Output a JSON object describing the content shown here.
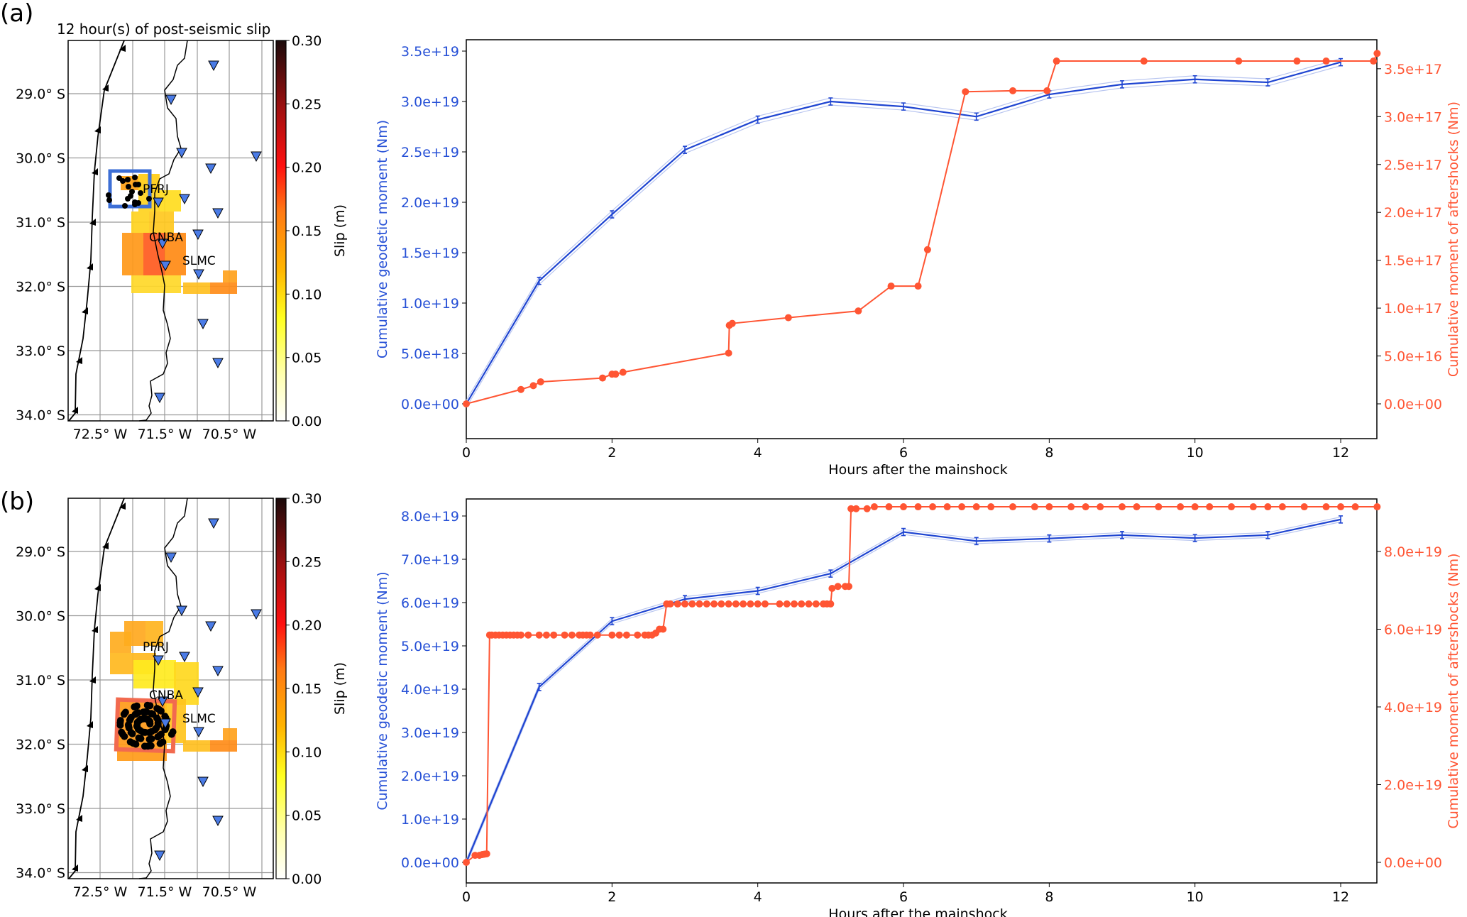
{
  "figure": {
    "panels": [
      {
        "label": "(a)",
        "map": {
          "title": "12 hour(s) of post-seismic slip",
          "lat_ticks": [
            "29.0° S",
            "30.0° S",
            "31.0° S",
            "32.0° S",
            "33.0° S",
            "34.0° S"
          ],
          "lon_ticks": [
            "72.5° W",
            "71.5° W",
            "70.5° W"
          ],
          "station_labels": [
            "PFRJ",
            "CNBA",
            "SLMC"
          ],
          "highlight_box_color": "#3d6fd6",
          "colorbar": {
            "label": "Slip  (m)",
            "ticks": [
              "0.00",
              "0.05",
              "0.10",
              "0.15",
              "0.20",
              "0.25",
              "0.30"
            ]
          }
        }
      },
      {
        "label": "(b)",
        "map": {
          "title": "",
          "lat_ticks": [
            "29.0° S",
            "30.0° S",
            "31.0° S",
            "32.0° S",
            "33.0° S",
            "34.0° S"
          ],
          "lon_ticks": [
            "72.5° W",
            "71.5° W",
            "70.5° W"
          ],
          "station_labels": [
            "PFRJ",
            "CNBA",
            "SLMC"
          ],
          "highlight_box_color": "#f26a4f",
          "colorbar": {
            "label": "Slip  (m)",
            "ticks": [
              "0.00",
              "0.05",
              "0.10",
              "0.15",
              "0.20",
              "0.25",
              "0.30"
            ]
          }
        }
      }
    ],
    "colors": {
      "geodetic": "#1f45d1",
      "geodetic_band": "#b9c6f0",
      "aftershock": "#ff5533"
    }
  },
  "chart_data": [
    {
      "type": "line",
      "panel": "(a)",
      "xlabel": "Hours after the mainshock",
      "xlim": [
        0,
        12.5
      ],
      "x_ticks": [
        "0",
        "2",
        "4",
        "6",
        "8",
        "10",
        "12"
      ],
      "ylabel_left": "Cumulative geodetic moment (Nm)",
      "ylim_left": [
        -1.6e+18,
        3.6e+19
      ],
      "y_ticks_left": [
        "0.0e+00",
        "5.0e+18",
        "1.0e+19",
        "1.5e+19",
        "2.0e+19",
        "2.5e+19",
        "3.0e+19",
        "3.5e+19"
      ],
      "ylabel_right": "Cumulative moment of aftershocks (Nm)",
      "ylim_right": [
        -1.6e+16,
        3.8e+17
      ],
      "y_ticks_right": [
        "0.0e+00",
        "5.0e+16",
        "1.0e+17",
        "1.5e+17",
        "2.0e+17",
        "2.5e+17",
        "3.0e+17",
        "3.5e+17"
      ],
      "series": [
        {
          "name": "Cumulative geodetic moment",
          "axis": "left",
          "x": [
            0,
            1,
            2,
            3,
            4,
            5,
            6,
            7,
            8,
            9,
            10,
            11,
            12
          ],
          "y": [
            0,
            1.22e+19,
            1.88e+19,
            2.52e+19,
            2.82e+19,
            3e+19,
            2.95e+19,
            2.85e+19,
            3.07e+19,
            3.17e+19,
            3.22e+19,
            3.19e+19,
            3.39e+19
          ],
          "error": 3e+17
        },
        {
          "name": "Cumulative moment of aftershocks",
          "axis": "right",
          "x": [
            0,
            0.75,
            0.92,
            1.02,
            1.87,
            2.0,
            2.05,
            2.15,
            3.6,
            3.61,
            3.65,
            4.42,
            5.38,
            5.83,
            6.2,
            6.33,
            6.85,
            7.5,
            7.97,
            8.1,
            9.3,
            10.6,
            11.4,
            11.8,
            12.45,
            12.5
          ],
          "y": [
            0,
            1.5e+16,
            1.9e+16,
            2.3e+16,
            2.7e+16,
            3.1e+16,
            3.1e+16,
            3.3e+16,
            5.3e+16,
            8.2e+16,
            8.4e+16,
            9e+16,
            9.7e+16,
            1.23e+17,
            1.23e+17,
            1.61e+17,
            3.26e+17,
            3.27e+17,
            3.27e+17,
            3.58e+17,
            3.58e+17,
            3.58e+17,
            3.58e+17,
            3.58e+17,
            3.58e+17,
            3.66e+17
          ]
        }
      ]
    },
    {
      "type": "line",
      "panel": "(b)",
      "xlabel": "Hours after the mainshock",
      "xlim": [
        0,
        12.5
      ],
      "x_ticks": [
        "0",
        "2",
        "4",
        "6",
        "8",
        "10",
        "12"
      ],
      "ylabel_left": "Cumulative geodetic moment (Nm)",
      "ylim_left": [
        -4.7e+18,
        8.4e+19
      ],
      "y_ticks_left": [
        "0.0e+00",
        "1.0e+19",
        "2.0e+19",
        "3.0e+19",
        "4.0e+19",
        "5.0e+19",
        "6.0e+19",
        "7.0e+19",
        "8.0e+19"
      ],
      "ylabel_right": "Cumulative moment of aftershocks (Nm)",
      "ylim_right": [
        -5.3e+18,
        9.35e+19
      ],
      "y_ticks_right": [
        "0.0e+00",
        "2.0e+19",
        "4.0e+19",
        "6.0e+19",
        "8.0e+19"
      ],
      "series": [
        {
          "name": "Cumulative geodetic moment",
          "axis": "left",
          "x": [
            0,
            1,
            2,
            3,
            4,
            5,
            6,
            7,
            8,
            9,
            10,
            11,
            12
          ],
          "y": [
            0,
            4.05e+19,
            5.57e+19,
            6.08e+19,
            6.27e+19,
            6.67e+19,
            7.63e+19,
            7.42e+19,
            7.48e+19,
            7.56e+19,
            7.49e+19,
            7.56e+19,
            7.92e+19
          ],
          "error": 8e+17
        },
        {
          "name": "Cumulative moment of aftershocks",
          "axis": "right",
          "x": [
            0,
            0.12,
            0.18,
            0.22,
            0.25,
            0.28,
            0.32,
            0.35,
            0.4,
            0.45,
            0.5,
            0.55,
            0.6,
            0.65,
            0.7,
            0.75,
            0.85,
            1.0,
            1.1,
            1.2,
            1.35,
            1.45,
            1.55,
            1.6,
            1.65,
            1.7,
            1.8,
            2.0,
            2.1,
            2.2,
            2.35,
            2.45,
            2.5,
            2.55,
            2.6,
            2.65,
            2.7,
            2.75,
            2.8,
            2.9,
            3.0,
            3.1,
            3.2,
            3.3,
            3.4,
            3.5,
            3.6,
            3.7,
            3.8,
            3.9,
            4.0,
            4.1,
            4.3,
            4.4,
            4.5,
            4.6,
            4.7,
            4.8,
            4.9,
            4.95,
            5.0,
            5.02,
            5.1,
            5.2,
            5.25,
            5.28,
            5.35,
            5.5,
            5.6,
            5.8,
            6.0,
            6.2,
            6.4,
            6.6,
            6.8,
            7.0,
            7.2,
            7.5,
            7.8,
            8.0,
            8.3,
            8.5,
            8.7,
            9.0,
            9.2,
            9.5,
            9.8,
            10.0,
            10.2,
            10.5,
            10.8,
            11.0,
            11.2,
            11.5,
            11.8,
            12.0,
            12.2,
            12.5
          ],
          "y": [
            0,
            1.8e+18,
            1.8e+18,
            2e+18,
            2.1e+18,
            2.2e+18,
            5.85e+19,
            5.85e+19,
            5.85e+19,
            5.85e+19,
            5.85e+19,
            5.85e+19,
            5.85e+19,
            5.85e+19,
            5.85e+19,
            5.85e+19,
            5.85e+19,
            5.85e+19,
            5.85e+19,
            5.85e+19,
            5.85e+19,
            5.85e+19,
            5.85e+19,
            5.85e+19,
            5.85e+19,
            5.85e+19,
            5.85e+19,
            5.85e+19,
            5.85e+19,
            5.85e+19,
            5.85e+19,
            5.85e+19,
            5.85e+19,
            5.85e+19,
            5.9e+19,
            6e+19,
            6e+19,
            6.65e+19,
            6.65e+19,
            6.65e+19,
            6.65e+19,
            6.65e+19,
            6.65e+19,
            6.65e+19,
            6.65e+19,
            6.65e+19,
            6.65e+19,
            6.65e+19,
            6.65e+19,
            6.65e+19,
            6.65e+19,
            6.65e+19,
            6.65e+19,
            6.65e+19,
            6.65e+19,
            6.65e+19,
            6.65e+19,
            6.65e+19,
            6.65e+19,
            6.65e+19,
            6.65e+19,
            7.05e+19,
            7.1e+19,
            7.1e+19,
            7.1e+19,
            9.1e+19,
            9.1e+19,
            9.1e+19,
            9.15e+19,
            9.15e+19,
            9.15e+19,
            9.15e+19,
            9.15e+19,
            9.15e+19,
            9.15e+19,
            9.15e+19,
            9.15e+19,
            9.15e+19,
            9.15e+19,
            9.15e+19,
            9.15e+19,
            9.15e+19,
            9.15e+19,
            9.15e+19,
            9.15e+19,
            9.15e+19,
            9.15e+19,
            9.15e+19,
            9.15e+19,
            9.15e+19,
            9.15e+19,
            9.15e+19,
            9.15e+19,
            9.15e+19,
            9.15e+19,
            9.15e+19,
            9.15e+19,
            9.15e+19
          ]
        }
      ]
    }
  ]
}
